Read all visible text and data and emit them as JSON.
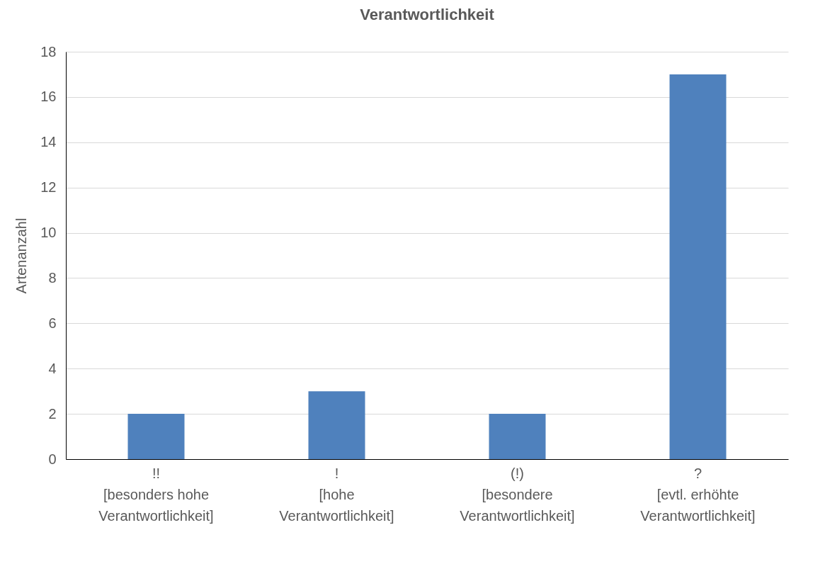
{
  "chart_data": {
    "type": "bar",
    "title": "Verantwortlichkeit",
    "ylabel": "Artenanzahl",
    "categories": [
      "!!\n[besonders hohe\nVerantwortlichkeit]",
      "!\n[hohe\nVerantwortlichkeit]",
      "(!)\n[besondere\nVerantwortlichkeit]",
      "?\n[evtl. erhöhte\nVerantwortlichkeit]"
    ],
    "values": [
      2,
      3,
      2,
      17
    ],
    "color": "#4f81bd",
    "ylim": [
      0,
      18
    ],
    "yticks": [
      0,
      2,
      4,
      6,
      8,
      10,
      12,
      14,
      16,
      18
    ],
    "grid": "y"
  }
}
